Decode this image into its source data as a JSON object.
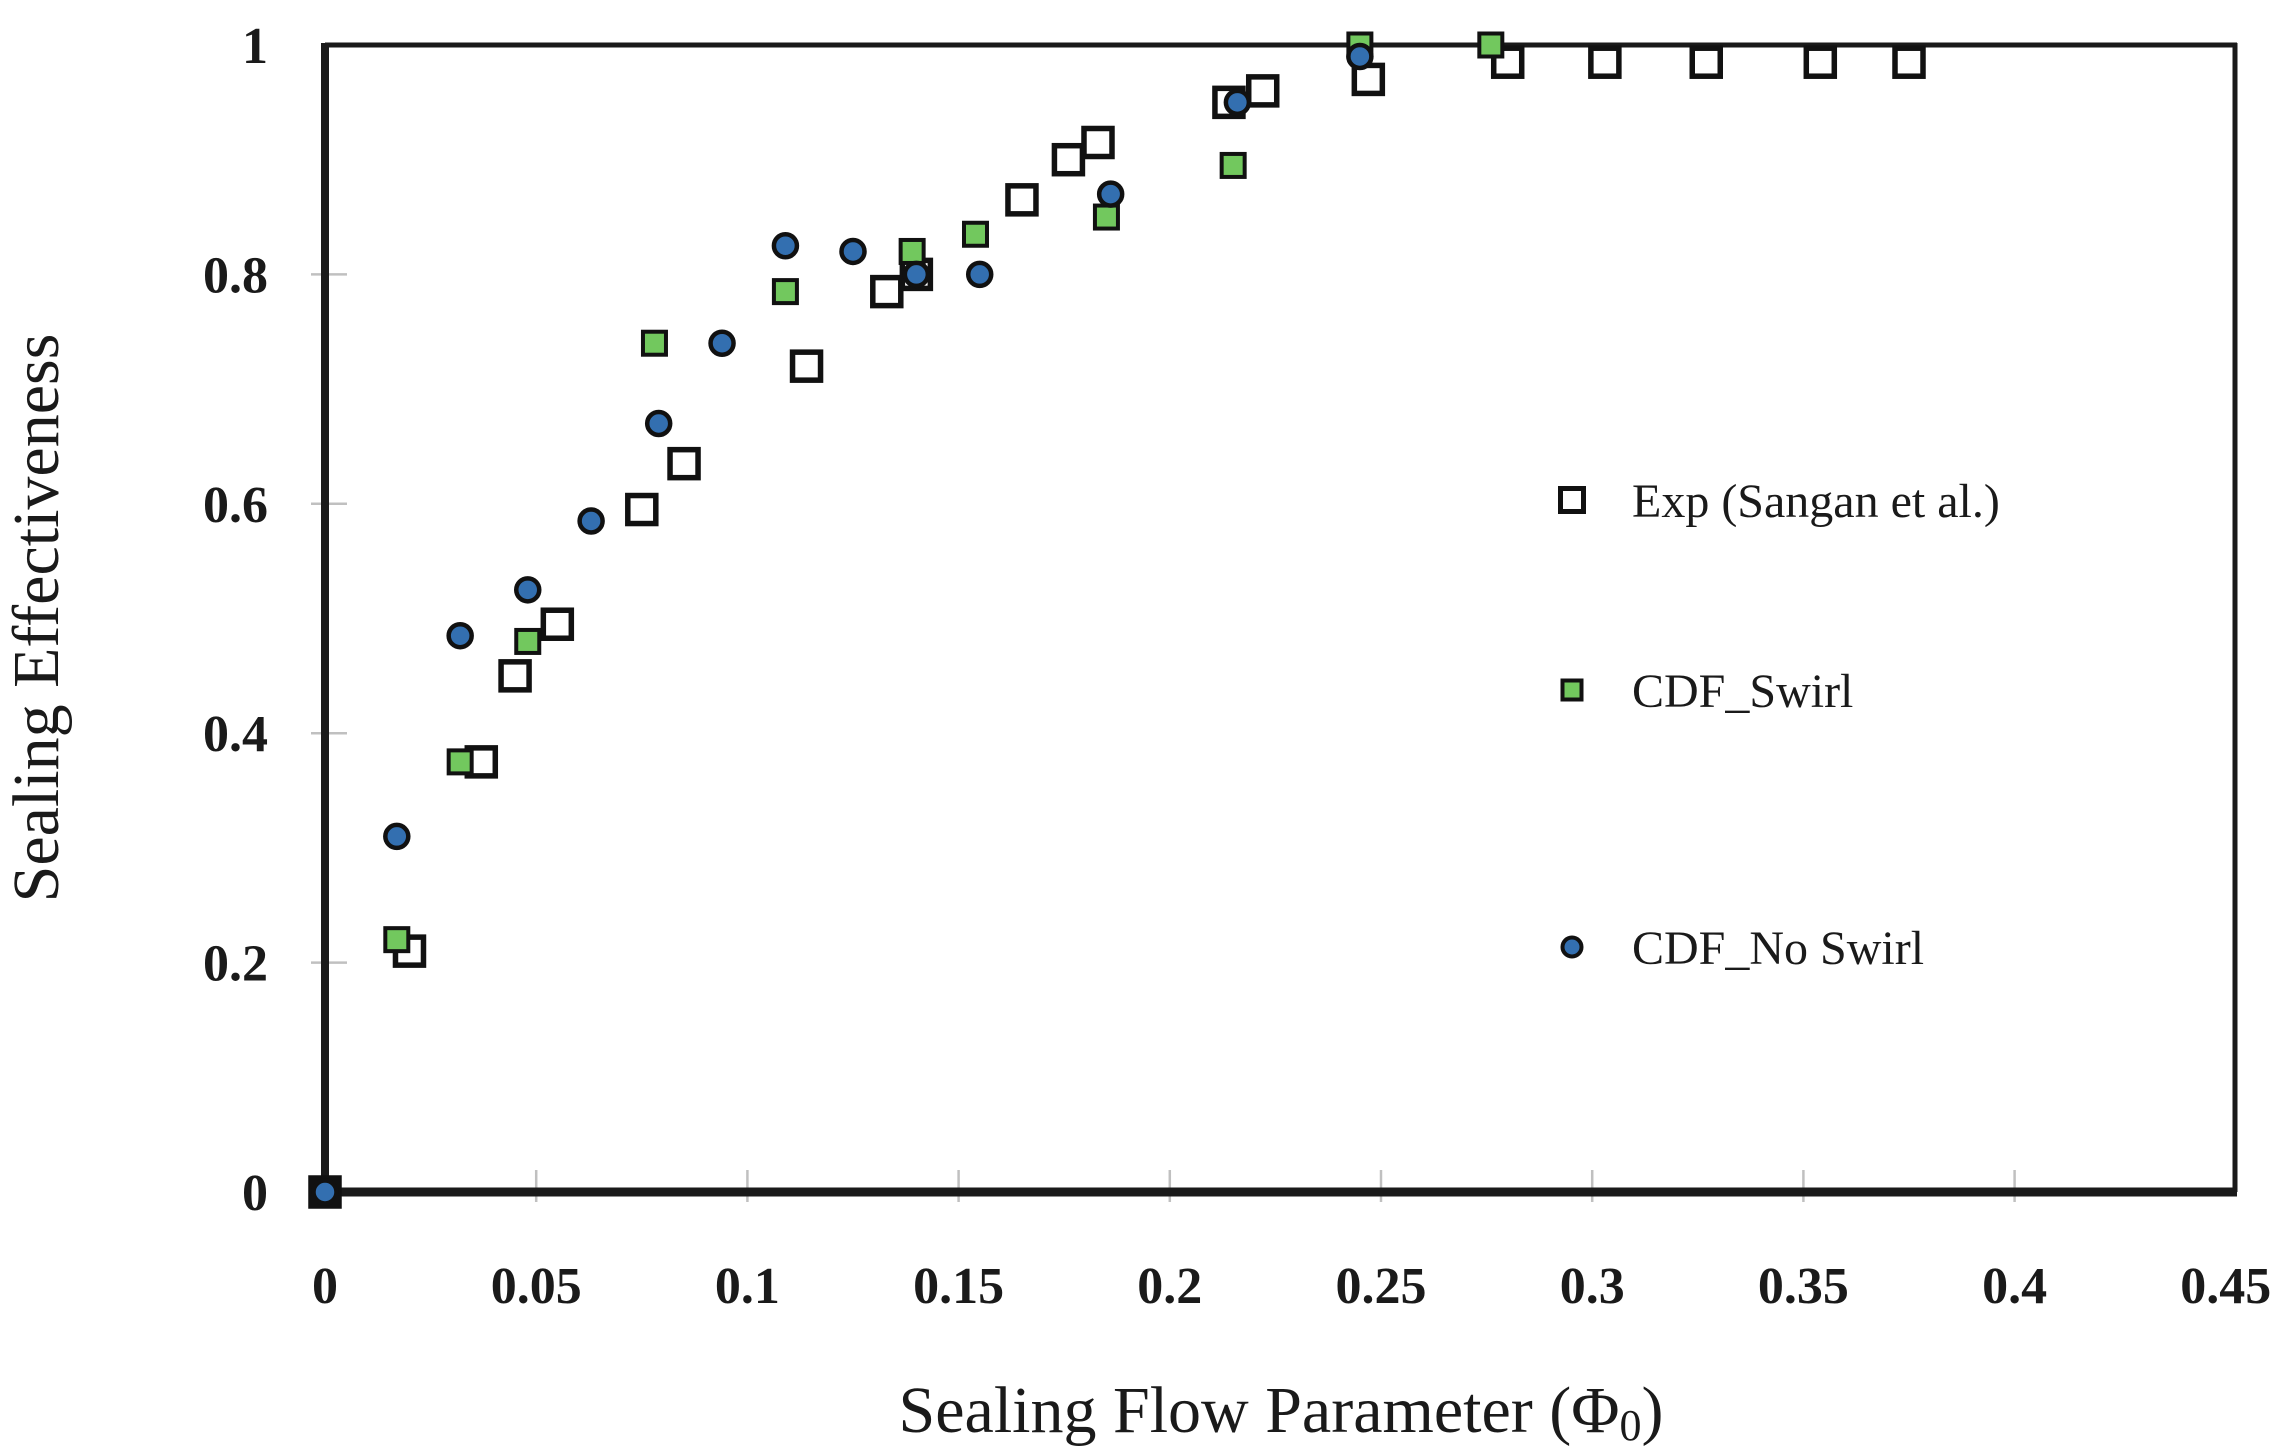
{
  "chart_data": {
    "type": "scatter",
    "title": "",
    "xlabel": "Sealing Flow Parameter (Φ0)",
    "xlabel_parts": {
      "pre": "Sealing Flow Parameter (Φ",
      "sub": "0",
      "post": ")"
    },
    "ylabel": "Sealing Effectiveness",
    "xlim": [
      0,
      0.45
    ],
    "ylim": [
      0,
      1
    ],
    "x_ticks": [
      0,
      0.05,
      0.1,
      0.15,
      0.2,
      0.25,
      0.3,
      0.35,
      0.4,
      0.45
    ],
    "y_ticks": [
      0,
      0.2,
      0.4,
      0.6,
      0.8,
      1
    ],
    "grid": false,
    "legend_position": "inside-right",
    "colors": {
      "axis": "#1a1a1a",
      "exp_fill": "#ffffff",
      "swirl_fill": "#72c85e",
      "no_swirl_fill": "#336fb0",
      "marker_stroke": "#111111",
      "minor_tick": "#c0c0c0"
    },
    "series": [
      {
        "name": "Exp (Sangan et al.)",
        "marker": "open-square",
        "points": [
          [
            0,
            0
          ],
          [
            0.02,
            0.21
          ],
          [
            0.037,
            0.375
          ],
          [
            0.045,
            0.45
          ],
          [
            0.055,
            0.495
          ],
          [
            0.075,
            0.595
          ],
          [
            0.085,
            0.635
          ],
          [
            0.114,
            0.72
          ],
          [
            0.133,
            0.785
          ],
          [
            0.14,
            0.8
          ],
          [
            0.165,
            0.865
          ],
          [
            0.176,
            0.9
          ],
          [
            0.183,
            0.915
          ],
          [
            0.214,
            0.95
          ],
          [
            0.222,
            0.96
          ],
          [
            0.247,
            0.97
          ],
          [
            0.28,
            0.985
          ],
          [
            0.303,
            0.985
          ],
          [
            0.327,
            0.985
          ],
          [
            0.354,
            0.985
          ],
          [
            0.375,
            0.985
          ]
        ]
      },
      {
        "name": "CDF_Swirl",
        "marker": "filled-square",
        "points": [
          [
            0,
            0
          ],
          [
            0.017,
            0.22
          ],
          [
            0.032,
            0.375
          ],
          [
            0.048,
            0.48
          ],
          [
            0.078,
            0.74
          ],
          [
            0.109,
            0.785
          ],
          [
            0.139,
            0.82
          ],
          [
            0.154,
            0.835
          ],
          [
            0.185,
            0.85
          ],
          [
            0.215,
            0.895
          ],
          [
            0.245,
            1.0
          ],
          [
            0.276,
            1.0
          ]
        ]
      },
      {
        "name": "CDF_No Swirl",
        "marker": "filled-circle",
        "points": [
          [
            0,
            0
          ],
          [
            0.017,
            0.31
          ],
          [
            0.032,
            0.485
          ],
          [
            0.048,
            0.525
          ],
          [
            0.063,
            0.585
          ],
          [
            0.079,
            0.67
          ],
          [
            0.094,
            0.74
          ],
          [
            0.109,
            0.825
          ],
          [
            0.125,
            0.82
          ],
          [
            0.14,
            0.8
          ],
          [
            0.155,
            0.8
          ],
          [
            0.186,
            0.87
          ],
          [
            0.216,
            0.95
          ],
          [
            0.245,
            0.99
          ]
        ]
      }
    ]
  }
}
